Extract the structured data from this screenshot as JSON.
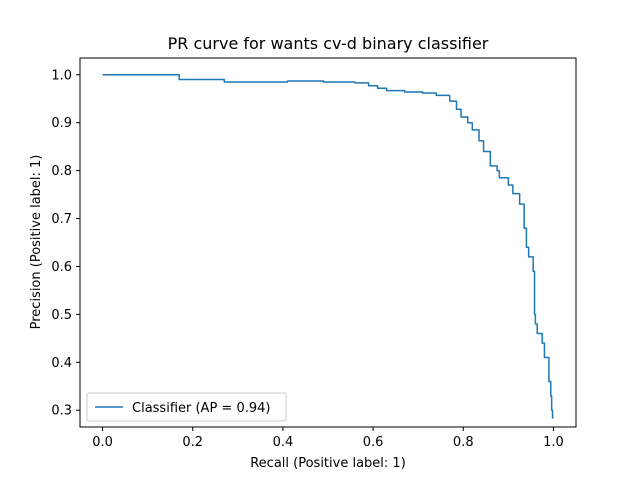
{
  "colors": {
    "series": "#1f77b4",
    "axes": "#000000",
    "background": "#ffffff",
    "legend_border": "#cccccc"
  },
  "chart_data": {
    "type": "line",
    "title": "PR curve for wants cv-d binary classifier",
    "xlabel": "Recall (Positive label: 1)",
    "ylabel": "Precision (Positive label: 1)",
    "xlim": [
      -0.05,
      1.05
    ],
    "ylim": [
      0.265,
      1.035
    ],
    "xticks": [
      0.0,
      0.2,
      0.4,
      0.6,
      0.8,
      1.0
    ],
    "xtick_labels": [
      "0.0",
      "0.2",
      "0.4",
      "0.6",
      "0.8",
      "1.0"
    ],
    "yticks": [
      0.3,
      0.4,
      0.5,
      0.6,
      0.7,
      0.8,
      0.9,
      1.0
    ],
    "ytick_labels": [
      "0.3",
      "0.4",
      "0.5",
      "0.6",
      "0.7",
      "0.8",
      "0.9",
      "1.0"
    ],
    "grid": false,
    "legend_position": "lower-left",
    "series": [
      {
        "name": "Classifier (AP = 0.94)",
        "step": true,
        "x": [
          0.0,
          0.17,
          0.27,
          0.41,
          0.49,
          0.56,
          0.59,
          0.61,
          0.63,
          0.67,
          0.71,
          0.74,
          0.77,
          0.785,
          0.795,
          0.81,
          0.82,
          0.835,
          0.845,
          0.86,
          0.875,
          0.88,
          0.9,
          0.91,
          0.925,
          0.935,
          0.94,
          0.945,
          0.955,
          0.958,
          0.96,
          0.964,
          0.975,
          0.98,
          0.99,
          0.994,
          0.996,
          0.998,
          1.0
        ],
        "y": [
          1.0,
          0.99,
          0.985,
          0.987,
          0.985,
          0.983,
          0.977,
          0.972,
          0.967,
          0.964,
          0.962,
          0.957,
          0.945,
          0.928,
          0.912,
          0.9,
          0.885,
          0.862,
          0.84,
          0.81,
          0.8,
          0.785,
          0.77,
          0.752,
          0.73,
          0.68,
          0.64,
          0.62,
          0.59,
          0.5,
          0.48,
          0.46,
          0.44,
          0.41,
          0.36,
          0.33,
          0.3,
          0.284,
          0.284
        ]
      }
    ]
  }
}
